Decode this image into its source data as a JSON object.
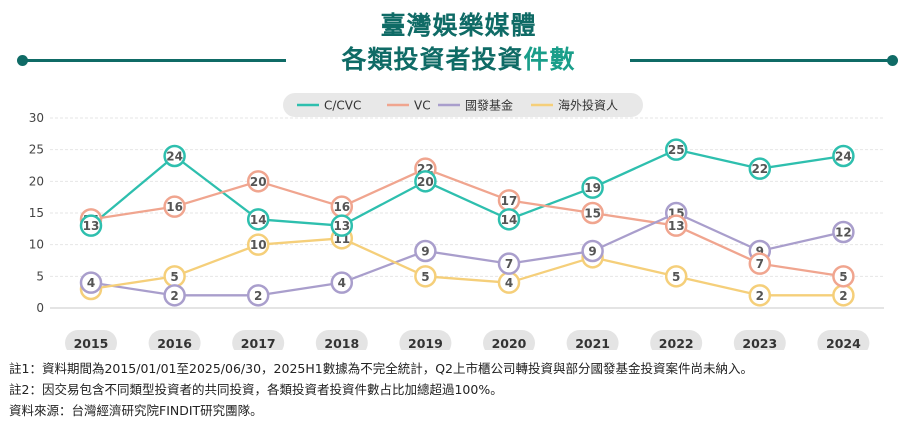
{
  "title": {
    "line1": "臺灣娛樂媒體",
    "line2_main": "各類投資者投資",
    "line2_highlight": "件數",
    "color": "#0f6b66",
    "highlight_color": "#1a9e8a"
  },
  "chart_data": {
    "type": "line",
    "x": [
      "2015",
      "2016",
      "2017",
      "2018",
      "2019",
      "2020",
      "2021",
      "2022",
      "2023",
      "2024"
    ],
    "ylim": [
      0,
      30
    ],
    "yticks": [
      0,
      5,
      10,
      15,
      20,
      25,
      30
    ],
    "grid": true,
    "legend_position": "top",
    "series": [
      {
        "name": "C/CVC",
        "color": "#2ebfae",
        "values": [
          13,
          24,
          14,
          13,
          20,
          14,
          19,
          25,
          22,
          24
        ]
      },
      {
        "name": "VC",
        "color": "#f0a58f",
        "values": [
          14,
          16,
          20,
          16,
          22,
          17,
          15,
          13,
          7,
          5
        ]
      },
      {
        "name": "國發基金",
        "color": "#a99ecc",
        "values": [
          4,
          2,
          2,
          4,
          9,
          7,
          9,
          15,
          9,
          12
        ]
      },
      {
        "name": "海外投資人",
        "color": "#f5cf7a",
        "values": [
          3,
          5,
          10,
          11,
          5,
          4,
          8,
          5,
          2,
          2
        ]
      }
    ]
  },
  "notes": [
    "註1：資料期間為2015/01/01至2025/06/30，2025H1數據為不完全統計，Q2上市櫃公司轉投資與部分國發基金投資案件尚未納入。",
    "註2：因交易包含不同類型投資者的共同投資，各類投資者投資件數占比加總超過100%。",
    "資料來源：台灣經濟研究院FINDIT研究團隊。"
  ]
}
